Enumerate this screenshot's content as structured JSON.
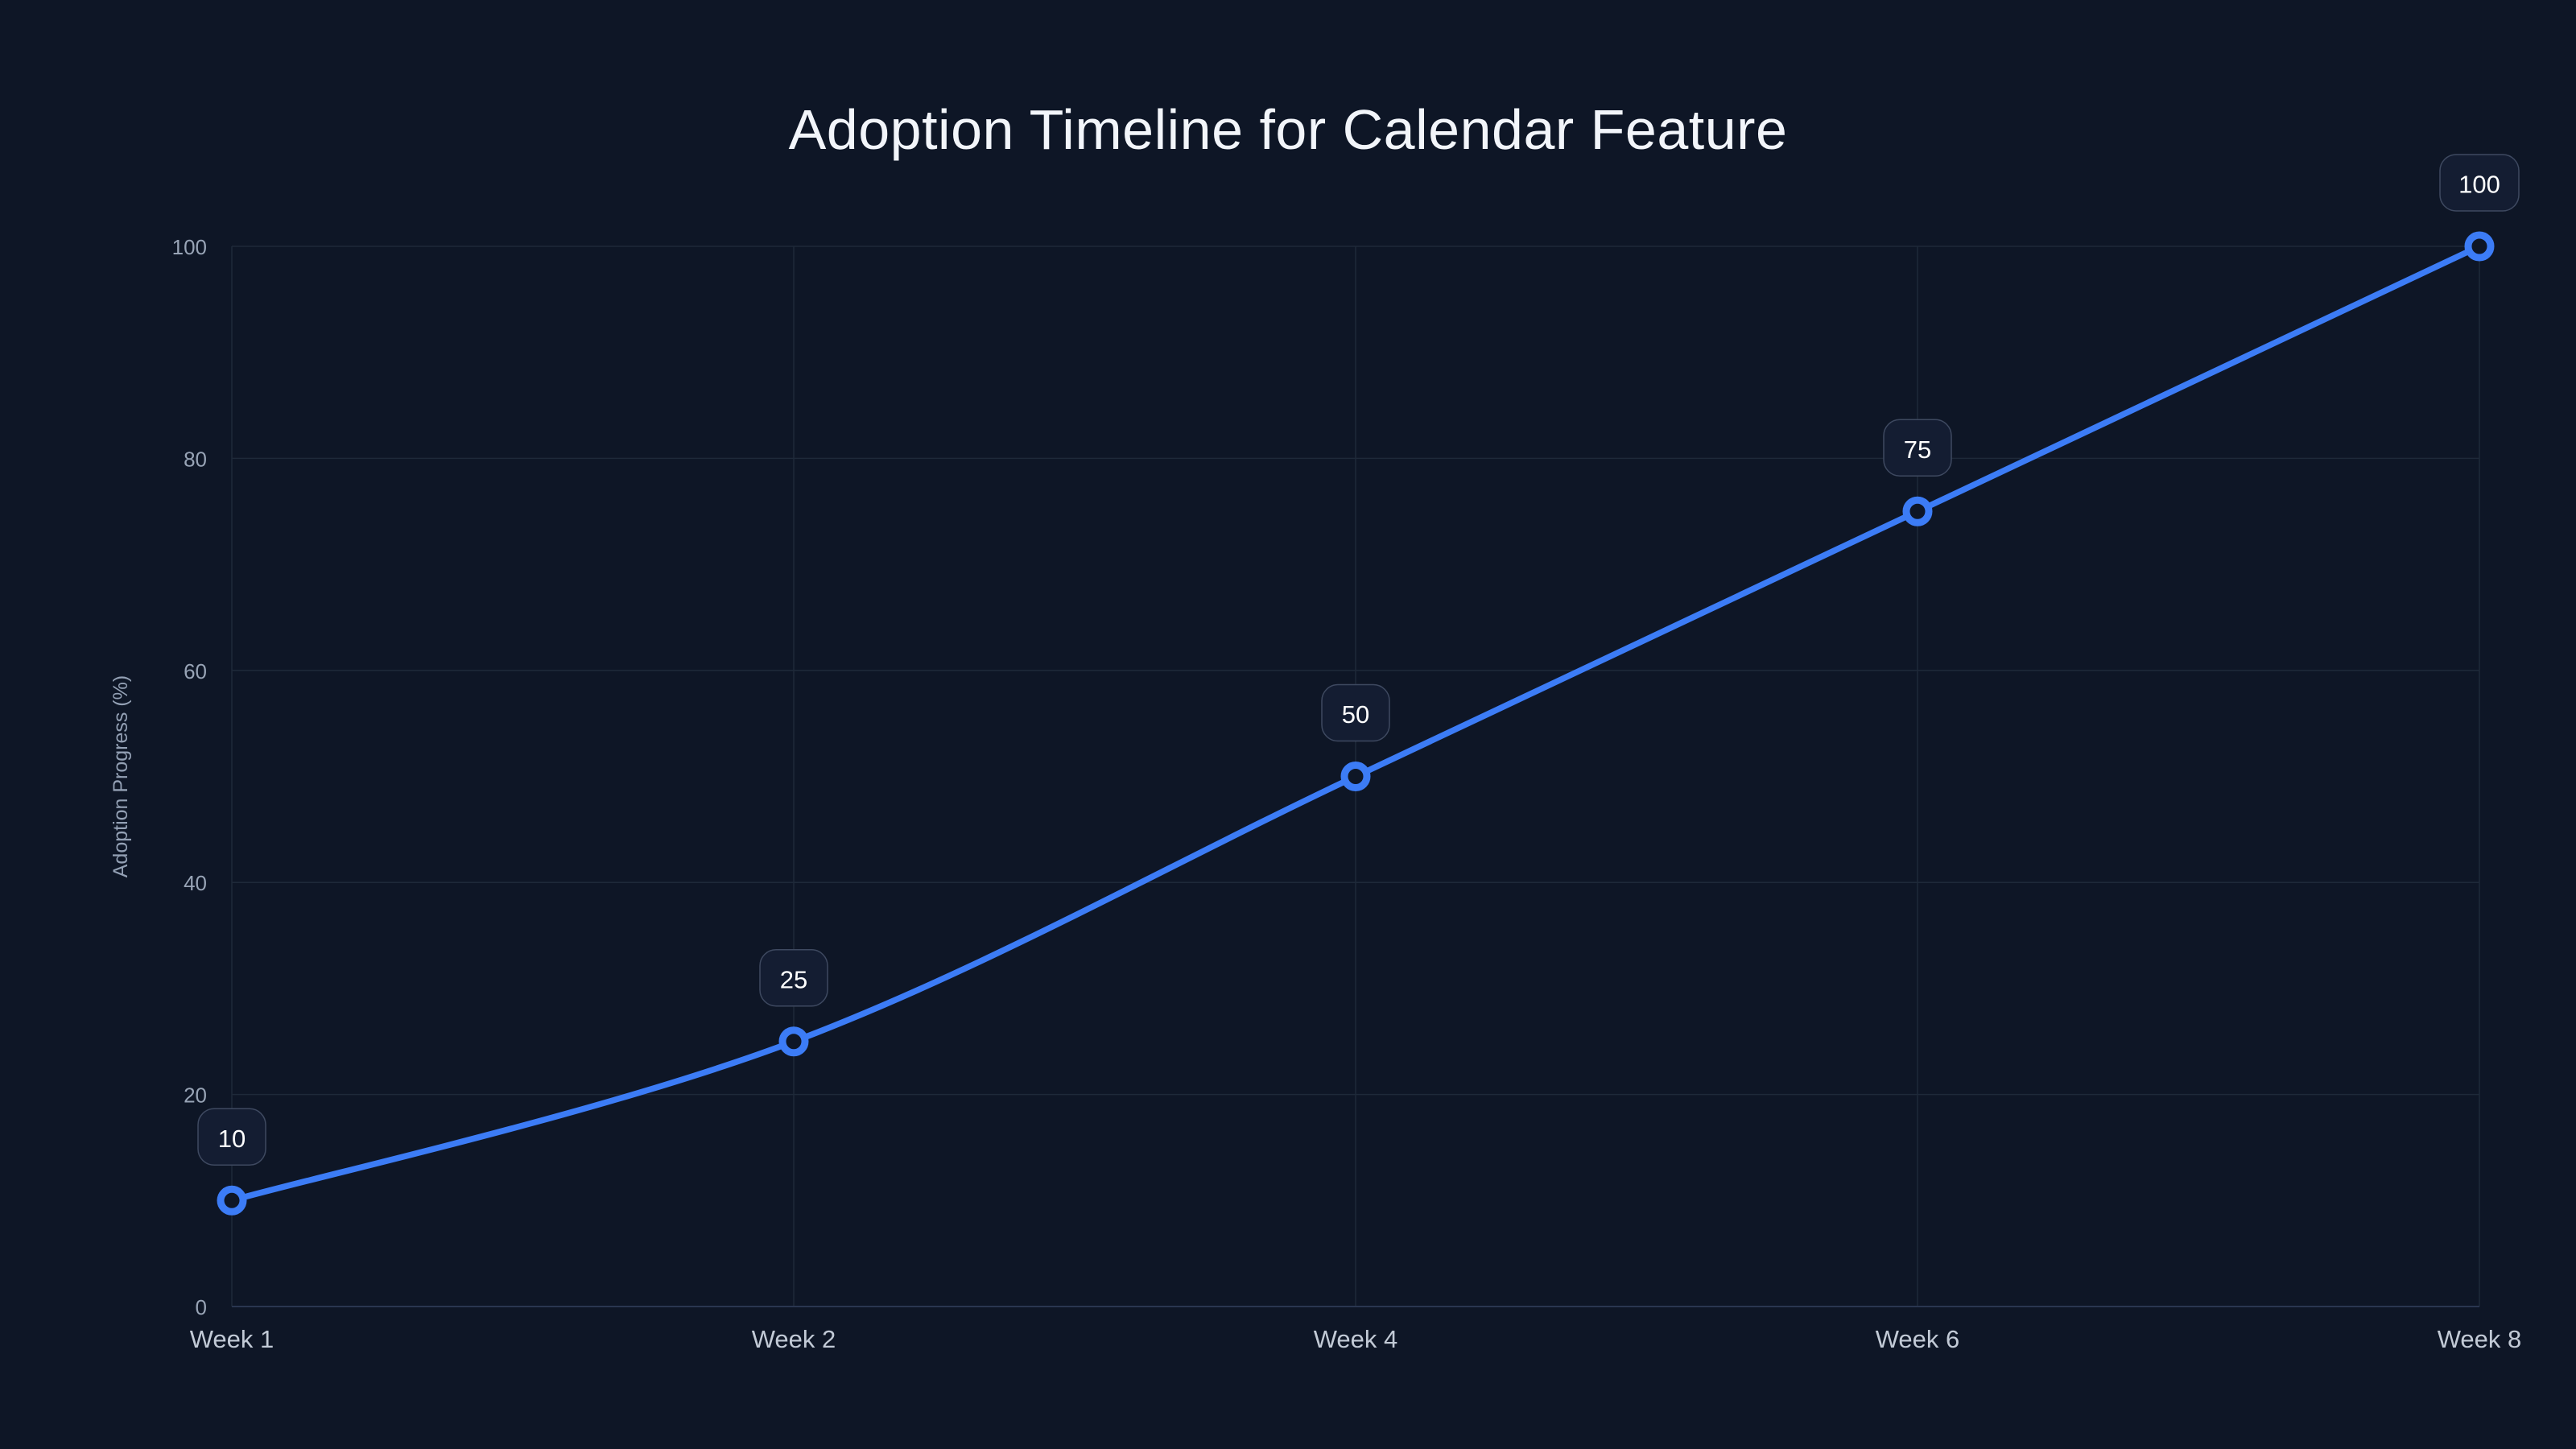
{
  "chart_data": {
    "type": "line",
    "title": "Adoption Timeline for Calendar Feature",
    "categories": [
      "Week 1",
      "Week 2",
      "Week 4",
      "Week 6",
      "Week 8"
    ],
    "values": [
      10,
      25,
      50,
      75,
      100
    ],
    "point_labels": [
      "10",
      "25",
      "50",
      "75",
      "100"
    ],
    "xlabel": "",
    "ylabel": "Adoption Progress (%)",
    "ylim": [
      0,
      100
    ],
    "yticks": [
      0,
      20,
      40,
      60,
      80,
      100
    ],
    "smooth": true,
    "grid": true,
    "legend": "none",
    "colors": {
      "background": "#0e1626",
      "line": "#3c7cf6",
      "marker_fill": "#0e1626",
      "grid": "#1e2939",
      "axis": "#2a3650",
      "tick_label": "#98a4b6",
      "x_label": "#c2cad6",
      "y_axis_title": "#93a0b4",
      "title": "#f2f5fa",
      "label_box_bg": "#141d32",
      "label_box_border": "#3e4960",
      "label_text": "#ffffff"
    }
  }
}
